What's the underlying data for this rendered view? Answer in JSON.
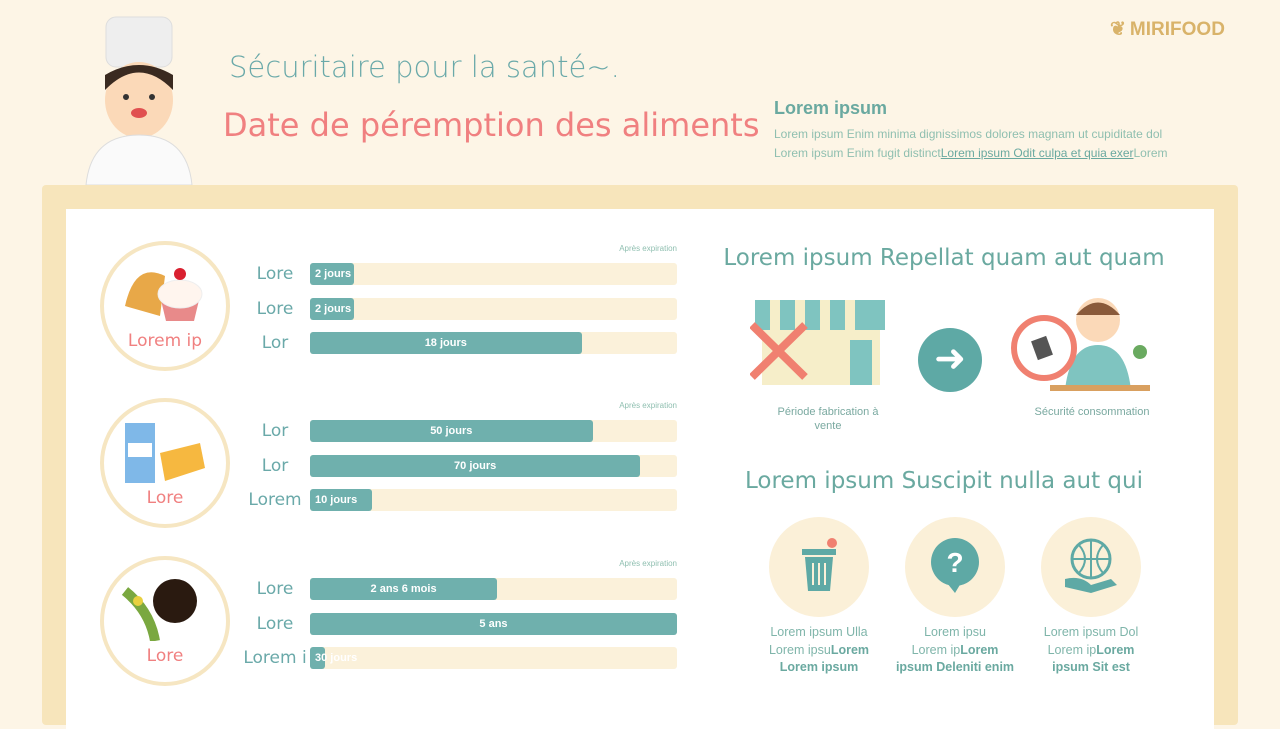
{
  "header": {
    "subtitle": "Sécuritaire pour la santé~.",
    "title": "Date de péremption des aliments",
    "logo": "MIRIFOOD"
  },
  "info": {
    "heading": "Lorem ipsum",
    "line1": "Lorem ipsum Enim minima dignissimos dolores magnam ut cupiditate dol",
    "line2_prefix": "Lorem ipsum Enim fugit distinct",
    "line2_link": "Lorem ipsum Odit culpa et quia exer",
    "line2_suffix": "Lorem"
  },
  "colors": {
    "accent": "#6fb0ad",
    "title": "#f08080",
    "track": "#fbf1da",
    "frame": "#f7e5bb"
  },
  "groups": [
    {
      "label": "Lorem ip",
      "icon": "pastry-icon",
      "after": "Après expiration",
      "rows": [
        {
          "name": "Lore",
          "value": "2 jours",
          "fraction": 0.12
        },
        {
          "name": "Lore",
          "value": "2 jours",
          "fraction": 0.12
        },
        {
          "name": "Lor",
          "value": "18 jours",
          "fraction": 0.74
        }
      ]
    },
    {
      "label": "Lore",
      "icon": "milk-cheese-icon",
      "after": "Après expiration",
      "rows": [
        {
          "name": "Lor",
          "value": "50 jours",
          "fraction": 0.77
        },
        {
          "name": "Lor",
          "value": "70 jours",
          "fraction": 0.9
        },
        {
          "name": "Lorem",
          "value": "10 jours",
          "fraction": 0.17
        }
      ]
    },
    {
      "label": "Lore",
      "icon": "corn-coffee-icon",
      "after": "Après expiration",
      "rows": [
        {
          "name": "Lore",
          "value": "2 ans 6 mois",
          "fraction": 0.51
        },
        {
          "name": "Lore",
          "value": "5 ans",
          "fraction": 1.0
        },
        {
          "name": "Lorem i",
          "value": "30 jours",
          "fraction": 0.04
        }
      ]
    }
  ],
  "section1": {
    "heading": "Lorem ipsum Repellat quam aut quam",
    "left_caption": "Période fabrication à vente",
    "right_caption": "Sécurité consommation"
  },
  "section2": {
    "heading": "Lorem ipsum Suscipit nulla aut qui",
    "items": [
      {
        "icon": "trash-icon",
        "l1": "Lorem ipsum Ulla",
        "l2a": "Lorem ipsu",
        "l2b": "Lorem",
        "l3": "Lorem ipsum"
      },
      {
        "icon": "question-icon",
        "l1": "Lorem ipsu",
        "l2a": "Lorem ip",
        "l2b": "Lorem",
        "l3": "ipsum Deleniti enim"
      },
      {
        "icon": "globe-hand-icon",
        "l1": "Lorem ipsum Dol",
        "l2a": "Lorem ip",
        "l2b": "Lorem",
        "l3": "ipsum Sit est"
      }
    ]
  }
}
